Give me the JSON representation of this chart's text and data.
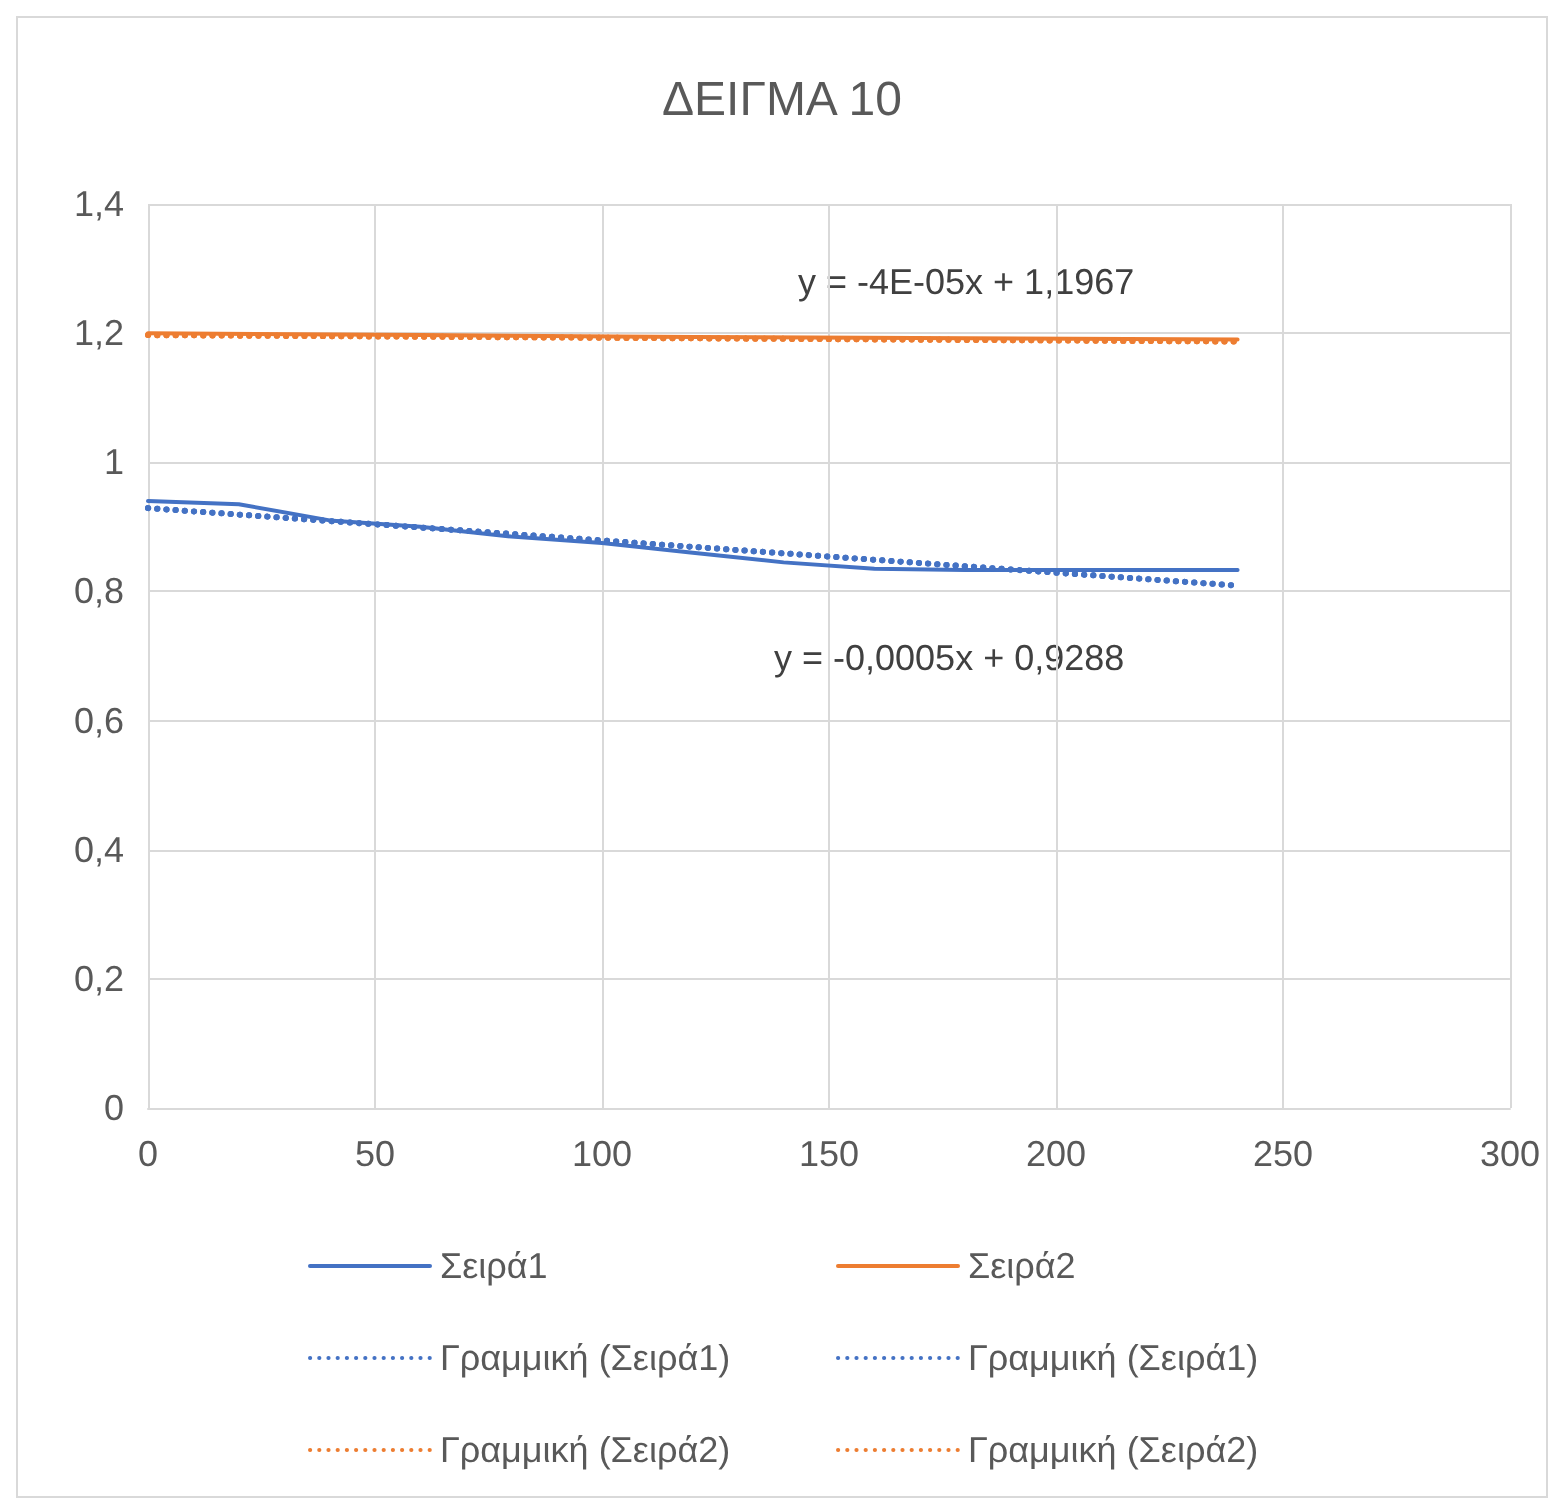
{
  "chart_data": {
    "type": "line",
    "title": "ΔΕΙΓΜΑ 10",
    "xlim": [
      0,
      300
    ],
    "xticks": [
      0,
      50,
      100,
      150,
      200,
      250,
      300
    ],
    "ylim": [
      0,
      1.4
    ],
    "yticks": [
      {
        "value": 0,
        "label": "0"
      },
      {
        "value": 0.2,
        "label": "0,2"
      },
      {
        "value": 0.4,
        "label": "0,4"
      },
      {
        "value": 0.6,
        "label": "0,6"
      },
      {
        "value": 0.8,
        "label": "0,8"
      },
      {
        "value": 1,
        "label": "1"
      },
      {
        "value": 1.2,
        "label": "1,2"
      },
      {
        "value": 1.4,
        "label": "1,4"
      }
    ],
    "grid": true,
    "legend": "bottom",
    "marker": "none",
    "series": [
      {
        "name": "Σειρά1",
        "color": "#4472c4",
        "line_style": "solid",
        "x": [
          0,
          20,
          40,
          60,
          80,
          100,
          120,
          140,
          160,
          180,
          200,
          220,
          240
        ],
        "values": [
          0.94,
          0.935,
          0.91,
          0.9,
          0.885,
          0.875,
          0.86,
          0.845,
          0.835,
          0.833,
          0.833,
          0.833,
          0.833
        ]
      },
      {
        "name": "Σειρά2",
        "color": "#ed7d31",
        "line_style": "solid",
        "x": [
          0,
          60,
          120,
          180,
          240
        ],
        "values": [
          1.2,
          1.197,
          1.194,
          1.192,
          1.19
        ]
      },
      {
        "name": "Γραμμική (Σειρά1)",
        "color": "#4472c4",
        "line_style": "dotted",
        "x": [
          0,
          240
        ],
        "values": [
          0.929,
          0.809
        ]
      },
      {
        "name": "Γραμμική (Σειρά1)",
        "color": "#4472c4",
        "line_style": "dotted",
        "x": [
          0,
          240
        ],
        "values": [
          0.929,
          0.809
        ]
      },
      {
        "name": "Γραμμική (Σειρά2)",
        "color": "#ed7d31",
        "line_style": "dotted",
        "x": [
          0,
          240
        ],
        "values": [
          1.197,
          1.187
        ]
      },
      {
        "name": "Γραμμική (Σειρά2)",
        "color": "#ed7d31",
        "line_style": "dotted",
        "x": [
          0,
          240
        ],
        "values": [
          1.197,
          1.187
        ]
      }
    ],
    "annotations": [
      "y = -4E-05x + 1,1967",
      "y = -0,0005x + 0,9288"
    ]
  }
}
